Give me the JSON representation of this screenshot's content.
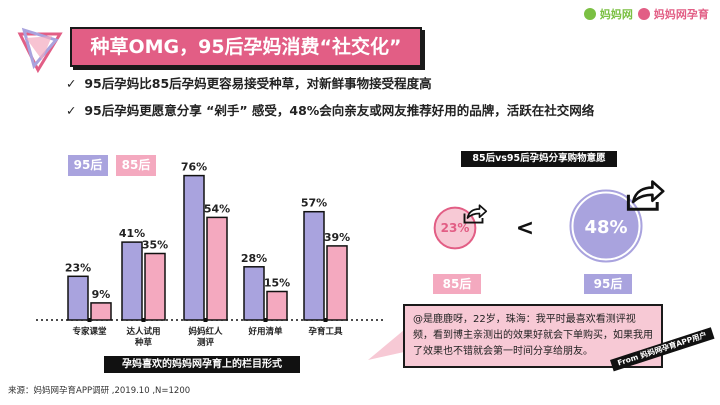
{
  "header": {
    "title": "种草OMG，95后孕妈消费“社交化”",
    "brand1": "妈妈网",
    "brand2": "妈妈网孕育"
  },
  "bullets": [
    "95后孕妈比85后孕妈更容易接受种草，对新鲜事物接受程度高",
    "95后孕妈更愿意分享 “剁手” 感受，48%会向亲友或网友推荐好用的品牌，活跃在社交网络"
  ],
  "colors": {
    "series_95": "#a9a3de",
    "series_85": "#f4a9bf",
    "accent": "#e25e85",
    "ink": "#1a1a1a"
  },
  "chart_data": [
    {
      "type": "bar",
      "categories": [
        "专家课堂",
        "达人试用\n种草",
        "妈妈红人\n测评",
        "好用清单",
        "孕育工具"
      ],
      "series": [
        {
          "name": "95后",
          "values": [
            23,
            41,
            76,
            28,
            57
          ],
          "labels": [
            "23%",
            "41%",
            "76%",
            "28%",
            "57%"
          ]
        },
        {
          "name": "85后",
          "values": [
            9,
            35,
            54,
            15,
            39
          ],
          "labels": [
            "9%",
            "35%",
            "54%",
            "15%",
            "39%"
          ]
        }
      ],
      "ylim": [
        0,
        80
      ],
      "caption": "孕妈喜欢的妈妈网孕育上的栏目形式"
    },
    {
      "type": "bubble",
      "title": "85后vs95后孕妈分享购物意愿",
      "items": [
        {
          "name": "85后",
          "value": 23,
          "label": "23%"
        },
        {
          "name": "95后",
          "value": 48,
          "label": "48%"
        }
      ],
      "comparator": "<"
    }
  ],
  "quote": "@是鹿鹿呀，22岁，珠海：我平时最喜欢看测评视频，看到博主亲测出的效果好就会下单购买，如果我用了效果也不错就会第一时间分享给朋友。",
  "stamp": "From 妈妈网孕育APP用户",
  "source": "来源：妈妈网孕育APP调研 ,2019.10 ,N=1200",
  "icons": [
    "geometric-logo-icon",
    "check-icon",
    "share-arrow-icon"
  ]
}
